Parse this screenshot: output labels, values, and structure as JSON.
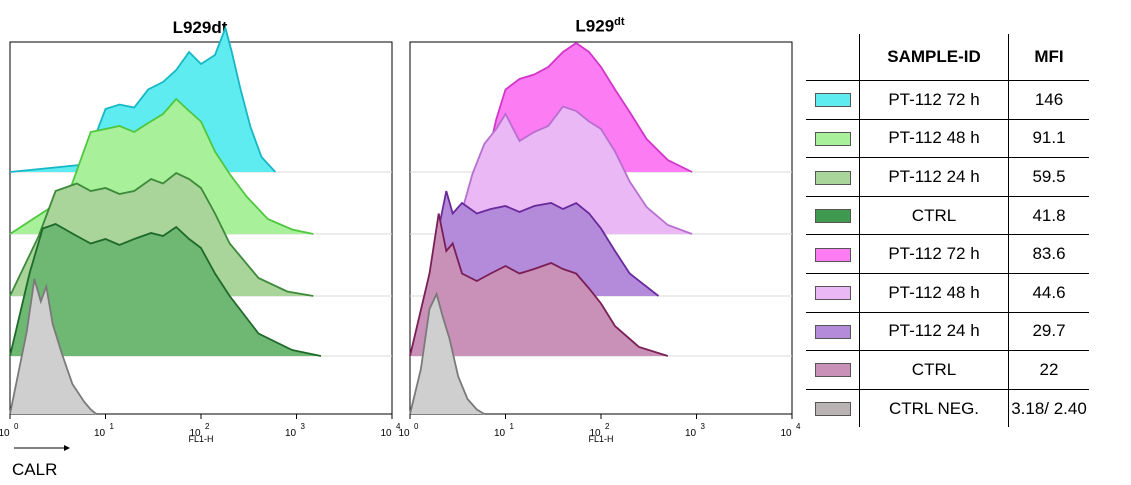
{
  "chart_data": {
    "type": "area",
    "x_axis_label": "FL1-H",
    "x_ticks": [
      "10",
      "10",
      "10",
      "10",
      "10"
    ],
    "x_tick_exponents": [
      "0",
      "1",
      "2",
      "3",
      "4"
    ],
    "xlim": [
      1,
      10000
    ],
    "x_scale": "log",
    "marker_label": "CALR",
    "panels": [
      {
        "title_base": "L929dt",
        "title_sup": "",
        "series": [
          {
            "color": "#5eecf1",
            "edge": "#17b7c5",
            "x": [
              1,
              6,
              10,
              14,
              20,
              28,
              40,
              55,
              75,
              100,
              140,
              180,
              210,
              260,
              330,
              430,
              600
            ],
            "y": [
              0,
              0.05,
              0.42,
              0.45,
              0.43,
              0.55,
              0.6,
              0.68,
              0.8,
              0.72,
              0.78,
              0.96,
              0.8,
              0.55,
              0.3,
              0.1,
              0
            ]
          },
          {
            "color": "#a8f09a",
            "edge": "#4fc73f",
            "x": [
              1,
              4,
              7,
              10,
              14,
              20,
              28,
              40,
              55,
              75,
              100,
              140,
              200,
              300,
              500,
              900,
              1500
            ],
            "y": [
              0,
              0.25,
              0.68,
              0.7,
              0.72,
              0.68,
              0.74,
              0.8,
              0.9,
              0.82,
              0.75,
              0.55,
              0.4,
              0.25,
              0.1,
              0.03,
              0
            ]
          },
          {
            "color": "#a9d49a",
            "edge": "#3d8a3a",
            "x": [
              1,
              2,
              3,
              5,
              7,
              10,
              14,
              20,
              30,
              40,
              55,
              75,
              100,
              140,
              200,
              400,
              800,
              1500
            ],
            "y": [
              0,
              0.4,
              0.7,
              0.75,
              0.7,
              0.72,
              0.68,
              0.7,
              0.78,
              0.75,
              0.82,
              0.78,
              0.72,
              0.55,
              0.35,
              0.12,
              0.03,
              0
            ]
          },
          {
            "color": "#6fb873",
            "edge": "#1f6a2a",
            "x": [
              1,
              1.6,
              2.2,
              3,
              5,
              7,
              10,
              14,
              20,
              30,
              40,
              55,
              75,
              100,
              140,
              200,
              400,
              900,
              1800
            ],
            "y": [
              0,
              0.55,
              0.85,
              0.88,
              0.8,
              0.75,
              0.78,
              0.74,
              0.78,
              0.82,
              0.8,
              0.86,
              0.78,
              0.72,
              0.55,
              0.4,
              0.15,
              0.04,
              0
            ]
          },
          {
            "color": "#cfcfcf",
            "edge": "#7a7a7a",
            "x": [
              1,
              1.5,
              1.8,
              2.1,
              2.4,
              2.8,
              3.5,
              4.5,
              6,
              7,
              8
            ],
            "y": [
              0,
              0.55,
              0.9,
              0.75,
              0.85,
              0.6,
              0.4,
              0.2,
              0.08,
              0.03,
              0
            ]
          }
        ]
      },
      {
        "title_base": "L929",
        "title_sup": "dt",
        "series": [
          {
            "color": "#fb7cf3",
            "edge": "#d236c9",
            "x": [
              6,
              8,
              10,
              14,
              20,
              28,
              40,
              55,
              75,
              100,
              140,
              200,
              300,
              500,
              900
            ],
            "y": [
              0,
              0.35,
              0.55,
              0.62,
              0.65,
              0.7,
              0.8,
              0.86,
              0.8,
              0.7,
              0.55,
              0.4,
              0.22,
              0.08,
              0
            ]
          },
          {
            "color": "#eab8f5",
            "edge": "#b86fd0",
            "x": [
              3,
              4.5,
              6,
              8,
              10,
              14,
              20,
              28,
              40,
              55,
              75,
              100,
              140,
              200,
              300,
              500,
              900
            ],
            "y": [
              0,
              0.4,
              0.6,
              0.7,
              0.8,
              0.62,
              0.68,
              0.72,
              0.85,
              0.82,
              0.75,
              0.7,
              0.55,
              0.35,
              0.18,
              0.06,
              0
            ]
          },
          {
            "color": "#b48bdb",
            "edge": "#6a2a9c",
            "x": [
              1.5,
              2,
              2.4,
              2.8,
              3.5,
              5,
              7,
              10,
              14,
              20,
              30,
              40,
              55,
              75,
              100,
              140,
              200,
              400
            ],
            "y": [
              0,
              0.45,
              0.7,
              0.55,
              0.62,
              0.55,
              0.58,
              0.6,
              0.56,
              0.6,
              0.62,
              0.58,
              0.62,
              0.55,
              0.45,
              0.3,
              0.15,
              0
            ]
          },
          {
            "color": "#c990b8",
            "edge": "#7a1f55",
            "x": [
              1,
              1.6,
              2,
              2.4,
              2.8,
              3.5,
              5,
              7,
              10,
              14,
              20,
              30,
              40,
              55,
              75,
              100,
              140,
              250,
              500
            ],
            "y": [
              0,
              0.55,
              0.95,
              0.7,
              0.75,
              0.55,
              0.5,
              0.55,
              0.6,
              0.55,
              0.58,
              0.62,
              0.58,
              0.55,
              0.45,
              0.35,
              0.2,
              0.06,
              0
            ]
          },
          {
            "color": "#cfcfcf",
            "edge": "#7a7a7a",
            "x": [
              1,
              1.3,
              1.6,
              1.9,
              2.2,
              2.6,
              3.2,
              4,
              5,
              6
            ],
            "y": [
              0,
              0.3,
              0.7,
              0.8,
              0.65,
              0.5,
              0.25,
              0.1,
              0.03,
              0
            ]
          }
        ]
      }
    ]
  },
  "legend": {
    "headers": {
      "sample": "SAMPLE-ID",
      "mfi": "MFI"
    },
    "rows": [
      {
        "color": "#5eecf1",
        "sample": "PT-112 72 h",
        "mfi": "146"
      },
      {
        "color": "#a8f09a",
        "sample": "PT-112 48 h",
        "mfi": "91.1"
      },
      {
        "color": "#a9d49a",
        "sample": "PT-112 24 h",
        "mfi": "59.5"
      },
      {
        "color": "#3f9a4f",
        "sample": "CTRL",
        "mfi": "41.8"
      },
      {
        "color": "#fb7cf3",
        "sample": "PT-112 72 h",
        "mfi": "83.6"
      },
      {
        "color": "#eab8f5",
        "sample": "PT-112 48 h",
        "mfi": "44.6"
      },
      {
        "color": "#b48bdb",
        "sample": "PT-112 24 h",
        "mfi": "29.7"
      },
      {
        "color": "#c990b8",
        "sample": "CTRL",
        "mfi": "22"
      },
      {
        "color": "#b9b3b3",
        "sample": "CTRL NEG.",
        "mfi": "3.18/ 2.40"
      }
    ]
  }
}
